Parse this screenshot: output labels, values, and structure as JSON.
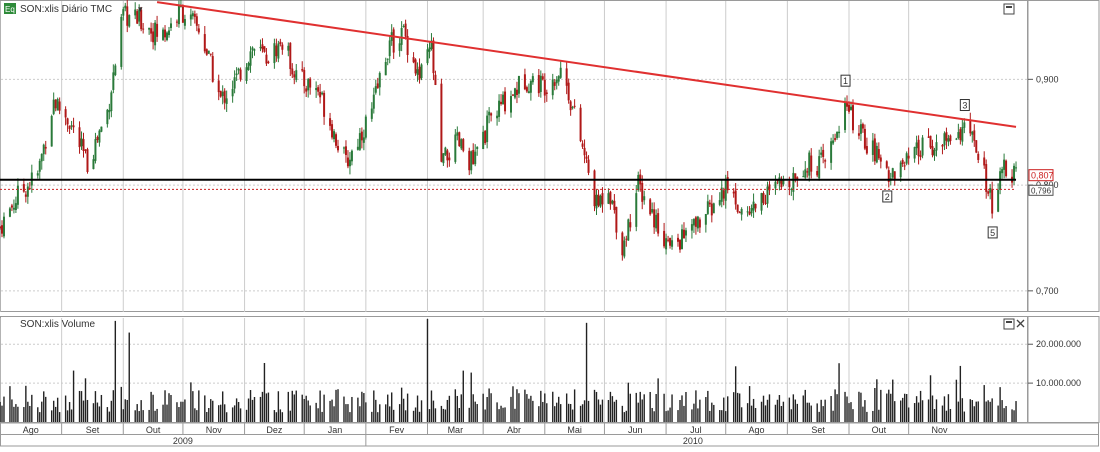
{
  "price_panel": {
    "title": "SON:xlis Diário TMC",
    "badge": "Eq",
    "menu_glyph": "▾",
    "y_ticks": [
      "0,900",
      "0,800",
      "0,700"
    ],
    "last_value_label": "0,807",
    "ref_value_label": "0,796",
    "wave_labels": [
      "1",
      "2",
      "3",
      "5"
    ]
  },
  "volume_panel": {
    "title": "SON:xlis Volume",
    "y_ticks": [
      "20.000.000",
      "10.000.000"
    ]
  },
  "x_axis": {
    "months": [
      "Ago",
      "Set",
      "Out",
      "Nov",
      "Dez",
      "Jan",
      "Fev",
      "Mar",
      "Abr",
      "Mai",
      "Jun",
      "Jul",
      "Ago",
      "Set",
      "Out",
      "Nov"
    ],
    "years": [
      "2009",
      "2010"
    ]
  },
  "colors": {
    "grid": "#cccccc",
    "resistance": "#e03030",
    "support": "#000000",
    "ref_line": "#cc2222",
    "candle_up": "#2a7a3a",
    "candle_down": "#b01818",
    "volume_bar": "#222222",
    "badge_bg": "#2e8b3a"
  },
  "chart_data": {
    "type": "candlestick",
    "title": "SON:xlis Diário TMC",
    "x_range": [
      "2009-07-01",
      "2010-11-26"
    ],
    "ylim": [
      0.68,
      0.975
    ],
    "volume_ylim": [
      0,
      27000000
    ],
    "y_ticks": [
      0.9,
      0.8,
      0.7
    ],
    "volume_ticks": [
      20000000,
      10000000
    ],
    "lines": [
      {
        "name": "resistance",
        "from": [
          "2009-09-18",
          0.973
        ],
        "to": [
          "2010-11-24",
          0.855
        ]
      },
      {
        "name": "support",
        "from": [
          "2009-07-01",
          0.805
        ],
        "to": [
          "2010-11-24",
          0.805
        ]
      },
      {
        "name": "reference",
        "from": [
          "2009-07-01",
          0.796
        ],
        "to": [
          "2010-11-24",
          0.796
        ]
      }
    ],
    "last_value": 0.807,
    "reference_value": 0.796,
    "wave_points": [
      {
        "label": "1",
        "date": "2010-08-30",
        "value": 0.885
      },
      {
        "label": "2",
        "date": "2010-09-20",
        "value": 0.802
      },
      {
        "label": "3",
        "date": "2010-10-29",
        "value": 0.862
      },
      {
        "label": "5",
        "date": "2010-11-12",
        "value": 0.768
      }
    ],
    "price_anchors": [
      [
        "2009-07-01",
        0.76
      ],
      [
        "2009-07-10",
        0.79
      ],
      [
        "2009-07-20",
        0.81
      ],
      [
        "2009-07-28",
        0.88
      ],
      [
        "2009-08-05",
        0.86
      ],
      [
        "2009-08-14",
        0.82
      ],
      [
        "2009-08-24",
        0.87
      ],
      [
        "2009-09-01",
        0.96
      ],
      [
        "2009-09-10",
        0.955
      ],
      [
        "2009-09-20",
        0.94
      ],
      [
        "2009-09-30",
        0.965
      ],
      [
        "2009-10-10",
        0.945
      ],
      [
        "2009-10-20",
        0.88
      ],
      [
        "2009-10-28",
        0.9
      ],
      [
        "2009-11-05",
        0.93
      ],
      [
        "2009-11-12",
        0.92
      ],
      [
        "2009-11-20",
        0.935
      ],
      [
        "2009-11-28",
        0.9
      ],
      [
        "2009-12-08",
        0.89
      ],
      [
        "2009-12-16",
        0.85
      ],
      [
        "2009-12-22",
        0.82
      ],
      [
        "2010-01-04",
        0.87
      ],
      [
        "2010-01-12",
        0.93
      ],
      [
        "2010-01-20",
        0.945
      ],
      [
        "2010-01-28",
        0.9
      ],
      [
        "2010-02-03",
        0.93
      ],
      [
        "2010-02-08",
        0.82
      ],
      [
        "2010-02-16",
        0.84
      ],
      [
        "2010-02-24",
        0.82
      ],
      [
        "2010-03-04",
        0.86
      ],
      [
        "2010-03-12",
        0.88
      ],
      [
        "2010-03-22",
        0.9
      ],
      [
        "2010-04-01",
        0.895
      ],
      [
        "2010-04-10",
        0.91
      ],
      [
        "2010-04-18",
        0.85
      ],
      [
        "2010-04-27",
        0.78
      ],
      [
        "2010-05-03",
        0.8
      ],
      [
        "2010-05-10",
        0.74
      ],
      [
        "2010-05-18",
        0.8
      ],
      [
        "2010-05-26",
        0.77
      ],
      [
        "2010-06-03",
        0.74
      ],
      [
        "2010-06-15",
        0.76
      ],
      [
        "2010-06-25",
        0.78
      ],
      [
        "2010-07-02",
        0.8
      ],
      [
        "2010-07-10",
        0.77
      ],
      [
        "2010-07-20",
        0.79
      ],
      [
        "2010-07-30",
        0.8
      ],
      [
        "2010-08-10",
        0.82
      ],
      [
        "2010-08-20",
        0.82
      ],
      [
        "2010-08-30",
        0.875
      ],
      [
        "2010-09-06",
        0.85
      ],
      [
        "2010-09-14",
        0.83
      ],
      [
        "2010-09-22",
        0.81
      ],
      [
        "2010-09-30",
        0.82
      ],
      [
        "2010-10-08",
        0.835
      ],
      [
        "2010-10-18",
        0.84
      ],
      [
        "2010-10-29",
        0.855
      ],
      [
        "2010-11-05",
        0.83
      ],
      [
        "2010-11-12",
        0.78
      ],
      [
        "2010-11-18",
        0.815
      ],
      [
        "2010-11-24",
        0.807
      ]
    ],
    "volume_spikes": [
      {
        "date": "2009-08-28",
        "value": 26000000
      },
      {
        "date": "2009-09-04",
        "value": 23000000
      },
      {
        "date": "2010-02-01",
        "value": 26500000
      },
      {
        "date": "2010-04-22",
        "value": 25500000
      }
    ]
  }
}
